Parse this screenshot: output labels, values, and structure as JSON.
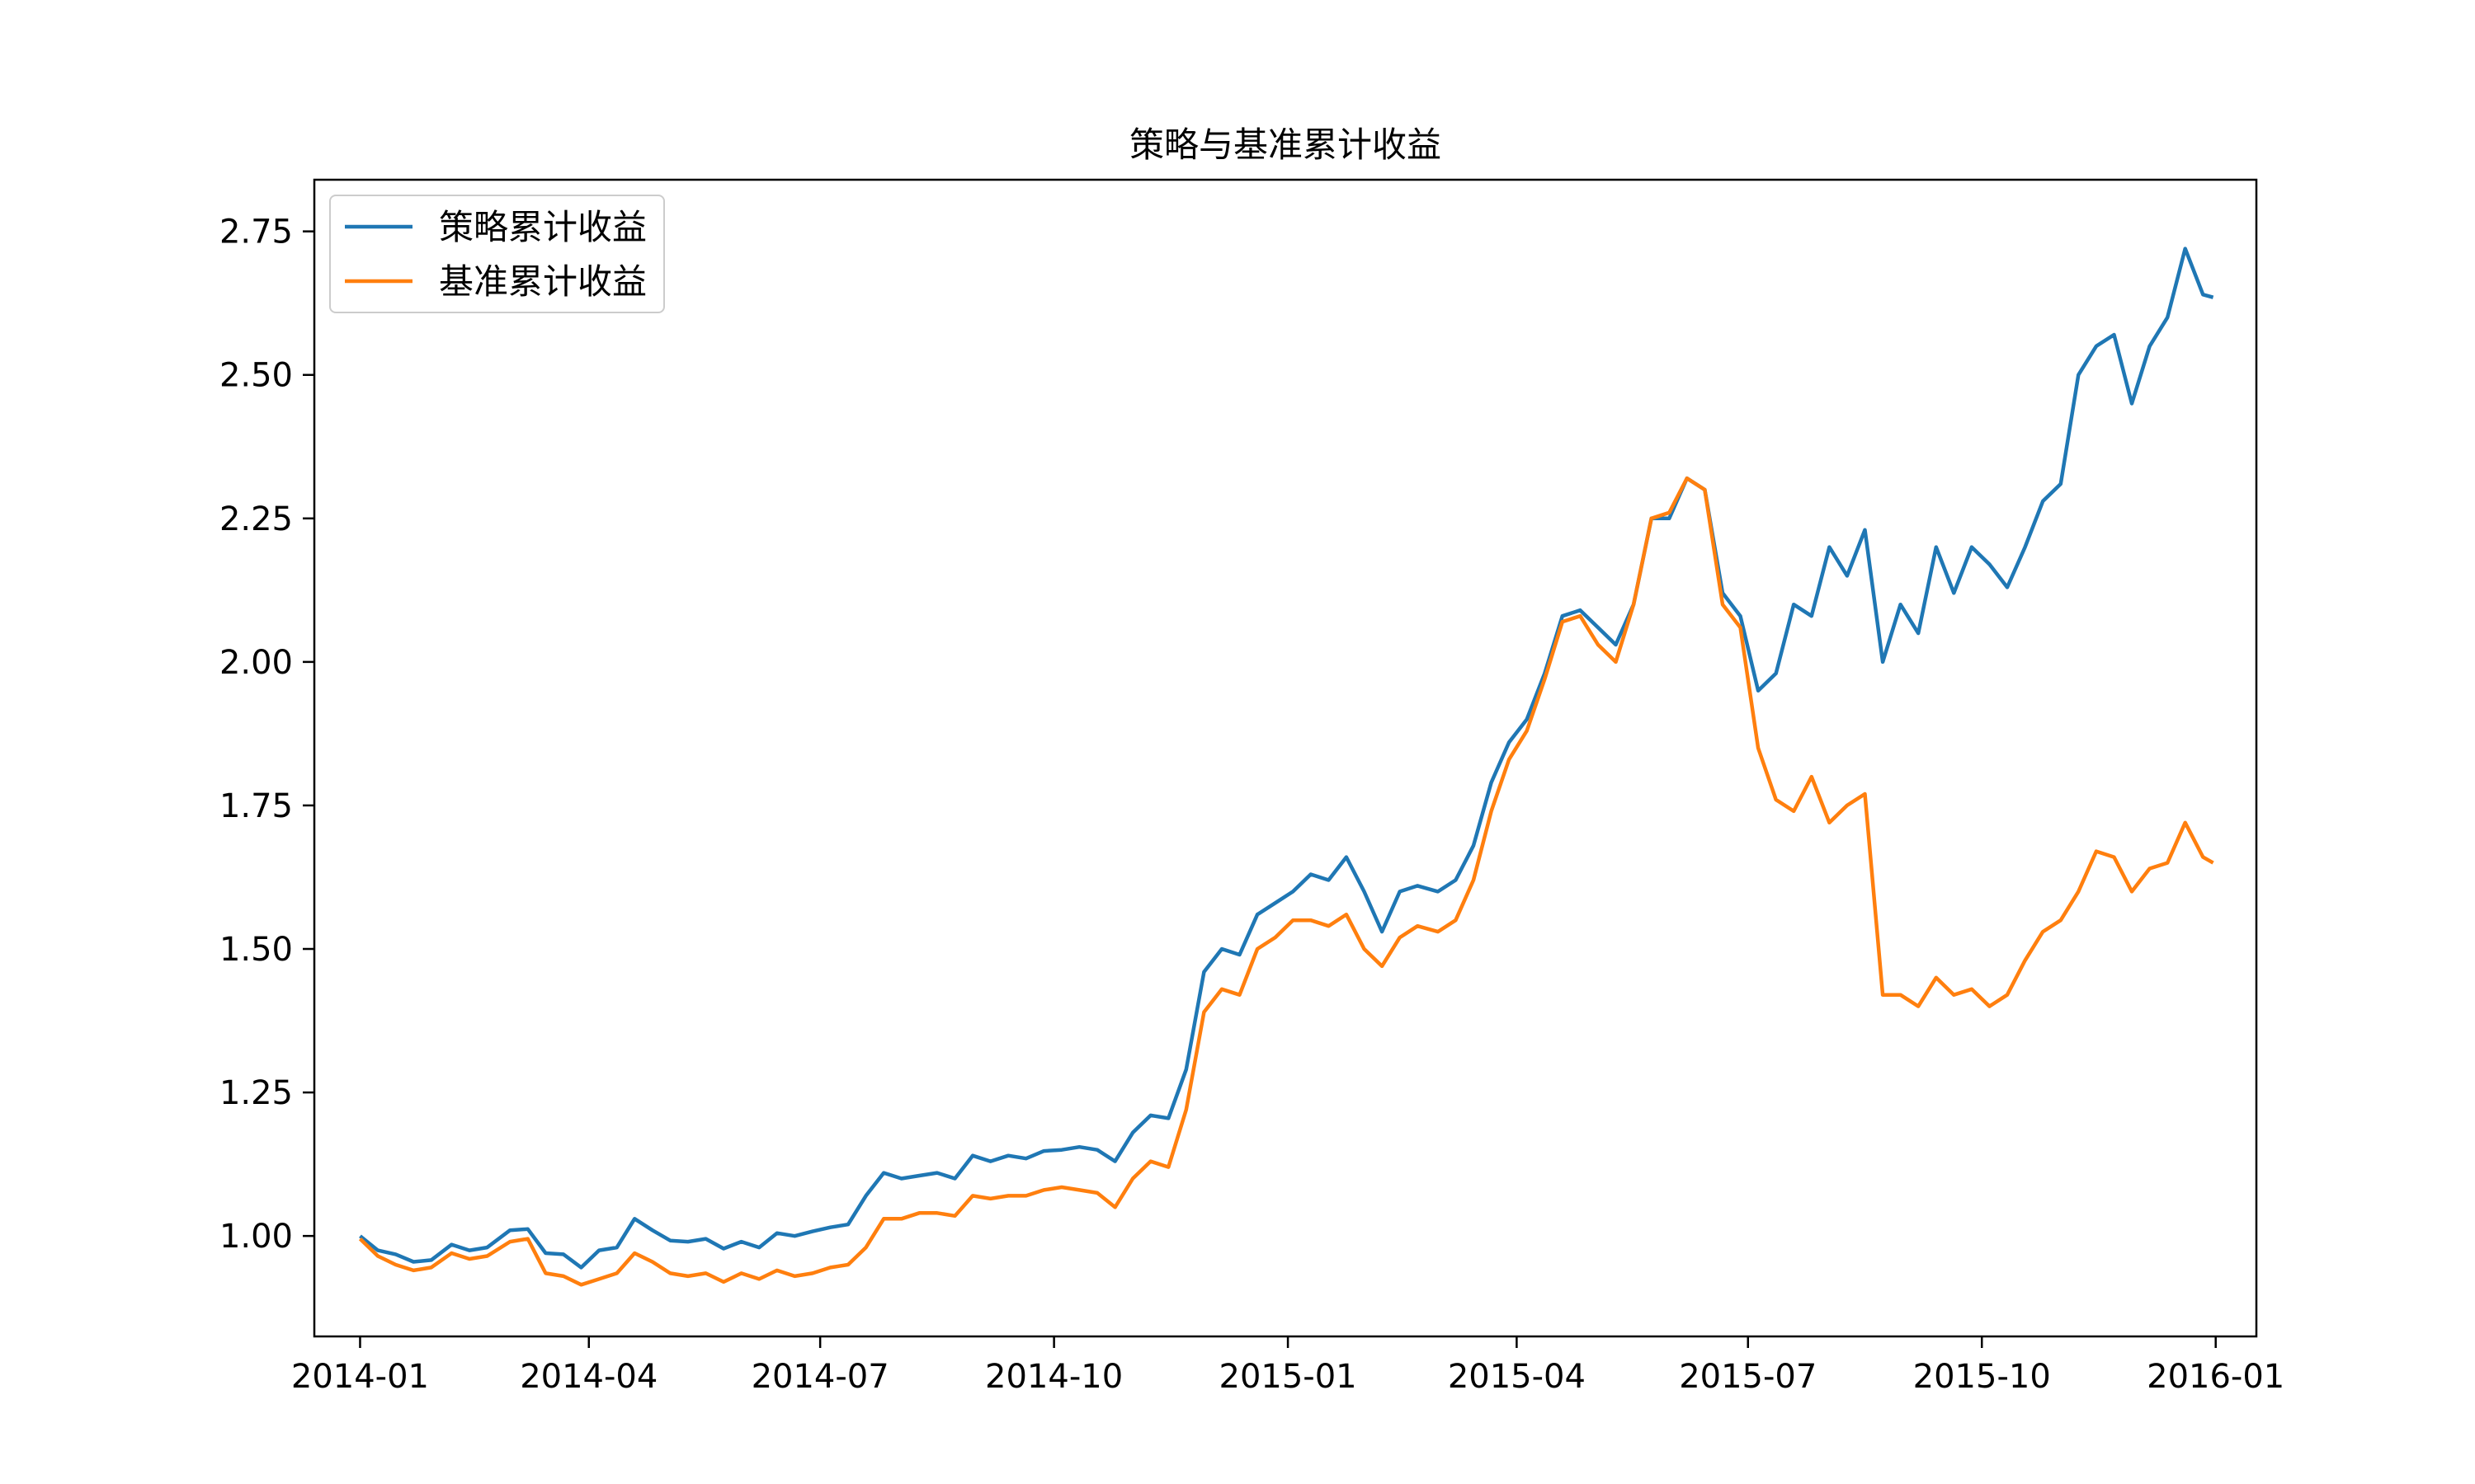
{
  "chart_data": {
    "type": "line",
    "title": "策略与基准累计收益",
    "xlabel": "",
    "ylabel": "",
    "x_ticks": [
      "2014-01",
      "2014-04",
      "2014-07",
      "2014-10",
      "2015-01",
      "2015-04",
      "2015-07",
      "2015-10",
      "2016-01"
    ],
    "y_ticks": [
      "1.00",
      "1.25",
      "1.50",
      "1.75",
      "2.00",
      "2.25",
      "2.50",
      "2.75"
    ],
    "xlim": [
      "2013-12-14",
      "2016-01-17"
    ],
    "ylim": [
      0.825,
      2.84
    ],
    "grid": false,
    "legend_position": "upper-left",
    "series": [
      {
        "name": "策略累计收益",
        "color": "#1f77b4",
        "points": [
          [
            "2014-01-01",
            1.0
          ],
          [
            "2014-01-08",
            0.975
          ],
          [
            "2014-01-15",
            0.968
          ],
          [
            "2014-01-22",
            0.955
          ],
          [
            "2014-01-29",
            0.958
          ],
          [
            "2014-02-06",
            0.985
          ],
          [
            "2014-02-13",
            0.975
          ],
          [
            "2014-02-20",
            0.98
          ],
          [
            "2014-03-01",
            1.01
          ],
          [
            "2014-03-08",
            1.012
          ],
          [
            "2014-03-15",
            0.97
          ],
          [
            "2014-03-22",
            0.968
          ],
          [
            "2014-03-29",
            0.945
          ],
          [
            "2014-04-05",
            0.975
          ],
          [
            "2014-04-12",
            0.98
          ],
          [
            "2014-04-19",
            1.03
          ],
          [
            "2014-04-26",
            1.01
          ],
          [
            "2014-05-03",
            0.992
          ],
          [
            "2014-05-10",
            0.99
          ],
          [
            "2014-05-17",
            0.995
          ],
          [
            "2014-05-24",
            0.978
          ],
          [
            "2014-05-31",
            0.99
          ],
          [
            "2014-06-07",
            0.98
          ],
          [
            "2014-06-14",
            1.005
          ],
          [
            "2014-06-21",
            1.0
          ],
          [
            "2014-06-28",
            1.008
          ],
          [
            "2014-07-05",
            1.015
          ],
          [
            "2014-07-12",
            1.02
          ],
          [
            "2014-07-19",
            1.07
          ],
          [
            "2014-07-26",
            1.11
          ],
          [
            "2014-08-02",
            1.1
          ],
          [
            "2014-08-09",
            1.105
          ],
          [
            "2014-08-16",
            1.11
          ],
          [
            "2014-08-23",
            1.1
          ],
          [
            "2014-08-30",
            1.14
          ],
          [
            "2014-09-06",
            1.13
          ],
          [
            "2014-09-13",
            1.14
          ],
          [
            "2014-09-20",
            1.135
          ],
          [
            "2014-09-27",
            1.148
          ],
          [
            "2014-10-04",
            1.15
          ],
          [
            "2014-10-11",
            1.155
          ],
          [
            "2014-10-18",
            1.15
          ],
          [
            "2014-10-25",
            1.13
          ],
          [
            "2014-11-01",
            1.18
          ],
          [
            "2014-11-08",
            1.21
          ],
          [
            "2014-11-15",
            1.205
          ],
          [
            "2014-11-22",
            1.29
          ],
          [
            "2014-11-29",
            1.46
          ],
          [
            "2014-12-06",
            1.5
          ],
          [
            "2014-12-13",
            1.49
          ],
          [
            "2014-12-20",
            1.56
          ],
          [
            "2014-12-27",
            1.58
          ],
          [
            "2015-01-03",
            1.6
          ],
          [
            "2015-01-10",
            1.63
          ],
          [
            "2015-01-17",
            1.62
          ],
          [
            "2015-01-24",
            1.66
          ],
          [
            "2015-01-31",
            1.6
          ],
          [
            "2015-02-07",
            1.53
          ],
          [
            "2015-02-14",
            1.6
          ],
          [
            "2015-02-21",
            1.61
          ],
          [
            "2015-03-01",
            1.6
          ],
          [
            "2015-03-08",
            1.62
          ],
          [
            "2015-03-15",
            1.68
          ],
          [
            "2015-03-22",
            1.79
          ],
          [
            "2015-03-29",
            1.86
          ],
          [
            "2015-04-05",
            1.9
          ],
          [
            "2015-04-12",
            1.98
          ],
          [
            "2015-04-19",
            2.08
          ],
          [
            "2015-04-26",
            2.09
          ],
          [
            "2015-05-03",
            2.06
          ],
          [
            "2015-05-10",
            2.03
          ],
          [
            "2015-05-17",
            2.1
          ],
          [
            "2015-05-24",
            2.25
          ],
          [
            "2015-05-31",
            2.25
          ],
          [
            "2015-06-07",
            2.32
          ],
          [
            "2015-06-14",
            2.3
          ],
          [
            "2015-06-21",
            2.12
          ],
          [
            "2015-06-28",
            2.08
          ],
          [
            "2015-07-05",
            1.95
          ],
          [
            "2015-07-12",
            1.98
          ],
          [
            "2015-07-19",
            2.1
          ],
          [
            "2015-07-26",
            2.08
          ],
          [
            "2015-08-02",
            2.2
          ],
          [
            "2015-08-09",
            2.15
          ],
          [
            "2015-08-16",
            2.23
          ],
          [
            "2015-08-23",
            2.0
          ],
          [
            "2015-08-30",
            2.1
          ],
          [
            "2015-09-06",
            2.05
          ],
          [
            "2015-09-13",
            2.2
          ],
          [
            "2015-09-20",
            2.12
          ],
          [
            "2015-09-27",
            2.2
          ],
          [
            "2015-10-04",
            2.17
          ],
          [
            "2015-10-11",
            2.13
          ],
          [
            "2015-10-18",
            2.2
          ],
          [
            "2015-10-25",
            2.28
          ],
          [
            "2015-11-01",
            2.31
          ],
          [
            "2015-11-08",
            2.5
          ],
          [
            "2015-11-15",
            2.55
          ],
          [
            "2015-11-22",
            2.57
          ],
          [
            "2015-11-29",
            2.45
          ],
          [
            "2015-12-06",
            2.55
          ],
          [
            "2015-12-13",
            2.6
          ],
          [
            "2015-12-20",
            2.72
          ],
          [
            "2015-12-27",
            2.64
          ],
          [
            "2015-12-31",
            2.635
          ]
        ]
      },
      {
        "name": "基准累计收益",
        "color": "#ff7f0e",
        "points": [
          [
            "2014-01-01",
            0.995
          ],
          [
            "2014-01-08",
            0.965
          ],
          [
            "2014-01-15",
            0.95
          ],
          [
            "2014-01-22",
            0.94
          ],
          [
            "2014-01-29",
            0.945
          ],
          [
            "2014-02-06",
            0.97
          ],
          [
            "2014-02-13",
            0.96
          ],
          [
            "2014-02-20",
            0.965
          ],
          [
            "2014-03-01",
            0.99
          ],
          [
            "2014-03-08",
            0.995
          ],
          [
            "2014-03-15",
            0.935
          ],
          [
            "2014-03-22",
            0.93
          ],
          [
            "2014-03-29",
            0.915
          ],
          [
            "2014-04-05",
            0.925
          ],
          [
            "2014-04-12",
            0.935
          ],
          [
            "2014-04-19",
            0.97
          ],
          [
            "2014-04-26",
            0.955
          ],
          [
            "2014-05-03",
            0.935
          ],
          [
            "2014-05-10",
            0.93
          ],
          [
            "2014-05-17",
            0.935
          ],
          [
            "2014-05-24",
            0.92
          ],
          [
            "2014-05-31",
            0.935
          ],
          [
            "2014-06-07",
            0.925
          ],
          [
            "2014-06-14",
            0.94
          ],
          [
            "2014-06-21",
            0.93
          ],
          [
            "2014-06-28",
            0.935
          ],
          [
            "2014-07-05",
            0.945
          ],
          [
            "2014-07-12",
            0.95
          ],
          [
            "2014-07-19",
            0.98
          ],
          [
            "2014-07-26",
            1.03
          ],
          [
            "2014-08-02",
            1.03
          ],
          [
            "2014-08-09",
            1.04
          ],
          [
            "2014-08-16",
            1.04
          ],
          [
            "2014-08-23",
            1.035
          ],
          [
            "2014-08-30",
            1.07
          ],
          [
            "2014-09-06",
            1.065
          ],
          [
            "2014-09-13",
            1.07
          ],
          [
            "2014-09-20",
            1.07
          ],
          [
            "2014-09-27",
            1.08
          ],
          [
            "2014-10-04",
            1.085
          ],
          [
            "2014-10-11",
            1.08
          ],
          [
            "2014-10-18",
            1.075
          ],
          [
            "2014-10-25",
            1.05
          ],
          [
            "2014-11-01",
            1.1
          ],
          [
            "2014-11-08",
            1.13
          ],
          [
            "2014-11-15",
            1.12
          ],
          [
            "2014-11-22",
            1.22
          ],
          [
            "2014-11-29",
            1.39
          ],
          [
            "2014-12-06",
            1.43
          ],
          [
            "2014-12-13",
            1.42
          ],
          [
            "2014-12-20",
            1.5
          ],
          [
            "2014-12-27",
            1.52
          ],
          [
            "2015-01-03",
            1.55
          ],
          [
            "2015-01-10",
            1.55
          ],
          [
            "2015-01-17",
            1.54
          ],
          [
            "2015-01-24",
            1.56
          ],
          [
            "2015-01-31",
            1.5
          ],
          [
            "2015-02-07",
            1.47
          ],
          [
            "2015-02-14",
            1.52
          ],
          [
            "2015-02-21",
            1.54
          ],
          [
            "2015-03-01",
            1.53
          ],
          [
            "2015-03-08",
            1.55
          ],
          [
            "2015-03-15",
            1.62
          ],
          [
            "2015-03-22",
            1.74
          ],
          [
            "2015-03-29",
            1.83
          ],
          [
            "2015-04-05",
            1.88
          ],
          [
            "2015-04-12",
            1.97
          ],
          [
            "2015-04-19",
            2.07
          ],
          [
            "2015-04-26",
            2.08
          ],
          [
            "2015-05-03",
            2.03
          ],
          [
            "2015-05-10",
            2.0
          ],
          [
            "2015-05-17",
            2.1
          ],
          [
            "2015-05-24",
            2.25
          ],
          [
            "2015-05-31",
            2.26
          ],
          [
            "2015-06-07",
            2.32
          ],
          [
            "2015-06-14",
            2.3
          ],
          [
            "2015-06-21",
            2.1
          ],
          [
            "2015-06-28",
            2.06
          ],
          [
            "2015-07-05",
            1.85
          ],
          [
            "2015-07-12",
            1.76
          ],
          [
            "2015-07-19",
            1.74
          ],
          [
            "2015-07-26",
            1.8
          ],
          [
            "2015-08-02",
            1.72
          ],
          [
            "2015-08-09",
            1.75
          ],
          [
            "2015-08-16",
            1.77
          ],
          [
            "2015-08-23",
            1.42
          ],
          [
            "2015-08-30",
            1.42
          ],
          [
            "2015-09-06",
            1.4
          ],
          [
            "2015-09-13",
            1.45
          ],
          [
            "2015-09-20",
            1.42
          ],
          [
            "2015-09-27",
            1.43
          ],
          [
            "2015-10-04",
            1.4
          ],
          [
            "2015-10-11",
            1.42
          ],
          [
            "2015-10-18",
            1.48
          ],
          [
            "2015-10-25",
            1.53
          ],
          [
            "2015-11-01",
            1.55
          ],
          [
            "2015-11-08",
            1.6
          ],
          [
            "2015-11-15",
            1.67
          ],
          [
            "2015-11-22",
            1.66
          ],
          [
            "2015-11-29",
            1.6
          ],
          [
            "2015-12-06",
            1.64
          ],
          [
            "2015-12-13",
            1.65
          ],
          [
            "2015-12-20",
            1.72
          ],
          [
            "2015-12-27",
            1.66
          ],
          [
            "2015-12-31",
            1.65
          ]
        ]
      }
    ]
  }
}
